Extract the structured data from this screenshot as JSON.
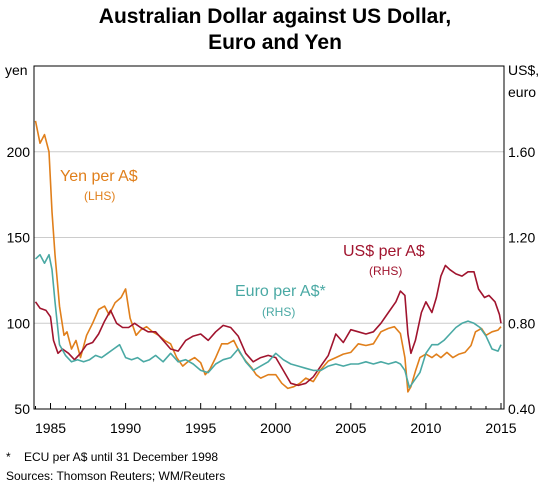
{
  "title_line1": "Australian Dollar against US Dollar,",
  "title_line2": "Euro and Yen",
  "footnote_marker": "*",
  "footnote": "ECU per A$ until 31 December 1998",
  "sources": "Sources:   Thomson Reuters; WM/Reuters",
  "colors": {
    "yen": "#E07F1B",
    "usd": "#A0142E",
    "euro": "#4AA9A4",
    "grid": "#cccccc",
    "axis": "#000000"
  },
  "chart_data": {
    "type": "line",
    "grid": true,
    "xlim": [
      1983.9,
      2015.2
    ],
    "x_ticks": [
      1985,
      1990,
      1995,
      2000,
      2005,
      2010,
      2015
    ],
    "x_tick_labels": [
      "1985",
      "1990",
      "1995",
      "2000",
      "2005",
      "2010",
      "2015"
    ],
    "left_axis": {
      "label": "yen",
      "ylim": [
        50,
        250
      ],
      "ticks": [
        50,
        100,
        150,
        200
      ],
      "tick_labels": [
        "50",
        "100",
        "150",
        "200"
      ]
    },
    "right_axis": {
      "label_line1": "US$,",
      "label_line2": "euro",
      "ylim": [
        0.4,
        2.0
      ],
      "ticks": [
        0.4,
        0.8,
        1.2,
        1.6
      ],
      "tick_labels": [
        "0.40",
        "0.80",
        "1.20",
        "1.60"
      ]
    },
    "series": [
      {
        "name": "Yen per A$",
        "axis_note": "(LHS)",
        "axis": "left",
        "color_key": "yen",
        "x": [
          1984.0,
          1984.3,
          1984.6,
          1984.9,
          1985.1,
          1985.3,
          1985.6,
          1985.9,
          1986.1,
          1986.4,
          1986.7,
          1987.0,
          1987.4,
          1987.8,
          1988.2,
          1988.6,
          1988.9,
          1989.3,
          1989.7,
          1990.0,
          1990.3,
          1990.7,
          1991.0,
          1991.4,
          1991.8,
          1992.2,
          1992.6,
          1993.0,
          1993.4,
          1993.8,
          1994.2,
          1994.6,
          1995.0,
          1995.3,
          1995.6,
          1996.0,
          1996.4,
          1996.8,
          1997.2,
          1997.6,
          1998.0,
          1998.4,
          1998.7,
          1999.0,
          1999.5,
          2000.0,
          2000.4,
          2000.8,
          2001.2,
          2001.6,
          2002.0,
          2002.5,
          2003.0,
          2003.5,
          2004.0,
          2004.5,
          2005.0,
          2005.5,
          2006.0,
          2006.5,
          2007.0,
          2007.5,
          2007.9,
          2008.3,
          2008.6,
          2008.8,
          2009.0,
          2009.3,
          2009.6,
          2010.0,
          2010.4,
          2010.7,
          2011.0,
          2011.4,
          2011.8,
          2012.2,
          2012.6,
          2013.0,
          2013.3,
          2013.7,
          2014.0,
          2014.4,
          2014.8,
          2015.0
        ],
        "y": [
          218,
          205,
          210,
          200,
          165,
          140,
          110,
          93,
          95,
          85,
          90,
          80,
          93,
          100,
          108,
          110,
          105,
          112,
          115,
          120,
          103,
          93,
          96,
          98,
          95,
          93,
          90,
          88,
          80,
          75,
          78,
          80,
          77,
          70,
          73,
          80,
          88,
          88,
          90,
          83,
          78,
          74,
          70,
          68,
          70,
          70,
          65,
          62,
          63,
          65,
          68,
          66,
          73,
          78,
          80,
          82,
          83,
          88,
          87,
          88,
          95,
          97,
          98,
          94,
          80,
          60,
          63,
          72,
          80,
          82,
          80,
          82,
          80,
          83,
          80,
          82,
          83,
          87,
          95,
          97,
          93,
          95,
          96,
          98
        ]
      },
      {
        "name": "US$ per A$",
        "axis_note": "(RHS)",
        "axis": "right",
        "color_key": "usd",
        "x": [
          1984.0,
          1984.3,
          1984.7,
          1985.0,
          1985.2,
          1985.5,
          1985.8,
          1986.2,
          1986.6,
          1987.0,
          1987.4,
          1987.8,
          1988.2,
          1988.6,
          1989.0,
          1989.4,
          1989.8,
          1990.2,
          1990.6,
          1991.0,
          1991.5,
          1992.0,
          1992.5,
          1993.0,
          1993.5,
          1994.0,
          1994.5,
          1995.0,
          1995.5,
          1996.0,
          1996.5,
          1997.0,
          1997.5,
          1998.0,
          1998.5,
          1999.0,
          1999.5,
          2000.0,
          2000.5,
          2001.0,
          2001.5,
          2002.0,
          2002.5,
          2003.0,
          2003.5,
          2004.0,
          2004.5,
          2005.0,
          2005.5,
          2006.0,
          2006.5,
          2007.0,
          2007.5,
          2008.0,
          2008.3,
          2008.6,
          2008.8,
          2009.0,
          2009.3,
          2009.7,
          2010.0,
          2010.4,
          2010.7,
          2011.0,
          2011.3,
          2011.6,
          2012.0,
          2012.4,
          2012.8,
          2013.2,
          2013.5,
          2013.9,
          2014.2,
          2014.6,
          2014.9,
          2015.0
        ],
        "y": [
          0.9,
          0.87,
          0.86,
          0.83,
          0.72,
          0.66,
          0.68,
          0.66,
          0.63,
          0.66,
          0.7,
          0.71,
          0.75,
          0.81,
          0.86,
          0.8,
          0.78,
          0.78,
          0.8,
          0.78,
          0.76,
          0.76,
          0.72,
          0.68,
          0.67,
          0.72,
          0.74,
          0.75,
          0.72,
          0.76,
          0.79,
          0.78,
          0.74,
          0.66,
          0.62,
          0.64,
          0.65,
          0.64,
          0.58,
          0.52,
          0.51,
          0.52,
          0.55,
          0.6,
          0.65,
          0.75,
          0.71,
          0.77,
          0.76,
          0.75,
          0.76,
          0.8,
          0.85,
          0.9,
          0.95,
          0.93,
          0.75,
          0.66,
          0.72,
          0.85,
          0.9,
          0.85,
          0.92,
          1.02,
          1.07,
          1.05,
          1.03,
          1.02,
          1.04,
          1.04,
          0.96,
          0.92,
          0.93,
          0.9,
          0.84,
          0.8
        ]
      },
      {
        "name": "Euro per A$*",
        "axis_note": "(RHS)",
        "axis": "right",
        "color_key": "euro",
        "x": [
          1984.0,
          1984.3,
          1984.6,
          1984.9,
          1985.1,
          1985.3,
          1985.6,
          1986.0,
          1986.4,
          1986.8,
          1987.2,
          1987.6,
          1988.0,
          1988.4,
          1988.8,
          1989.2,
          1989.6,
          1990.0,
          1990.4,
          1990.8,
          1991.2,
          1991.6,
          1992.0,
          1992.5,
          1993.0,
          1993.5,
          1994.0,
          1994.5,
          1995.0,
          1995.5,
          1996.0,
          1996.5,
          1997.0,
          1997.5,
          1998.0,
          1998.5,
          1999.0,
          1999.5,
          2000.0,
          2000.5,
          2001.0,
          2001.5,
          2002.0,
          2002.5,
          2003.0,
          2003.5,
          2004.0,
          2004.5,
          2005.0,
          2005.5,
          2006.0,
          2006.5,
          2007.0,
          2007.5,
          2008.0,
          2008.3,
          2008.6,
          2008.9,
          2009.2,
          2009.6,
          2010.0,
          2010.4,
          2010.8,
          2011.2,
          2011.6,
          2012.0,
          2012.4,
          2012.8,
          2013.2,
          2013.6,
          2014.0,
          2014.4,
          2014.8,
          2015.0
        ],
        "y": [
          1.1,
          1.12,
          1.08,
          1.12,
          1.05,
          0.9,
          0.7,
          0.65,
          0.62,
          0.63,
          0.62,
          0.63,
          0.65,
          0.64,
          0.66,
          0.68,
          0.7,
          0.64,
          0.63,
          0.64,
          0.62,
          0.63,
          0.65,
          0.62,
          0.66,
          0.62,
          0.63,
          0.61,
          0.58,
          0.57,
          0.61,
          0.63,
          0.64,
          0.68,
          0.62,
          0.58,
          0.6,
          0.62,
          0.66,
          0.63,
          0.61,
          0.6,
          0.59,
          0.58,
          0.58,
          0.6,
          0.61,
          0.6,
          0.61,
          0.61,
          0.62,
          0.61,
          0.62,
          0.61,
          0.62,
          0.61,
          0.58,
          0.5,
          0.53,
          0.57,
          0.66,
          0.7,
          0.7,
          0.72,
          0.75,
          0.78,
          0.8,
          0.81,
          0.8,
          0.78,
          0.74,
          0.68,
          0.67,
          0.7
        ]
      }
    ]
  }
}
